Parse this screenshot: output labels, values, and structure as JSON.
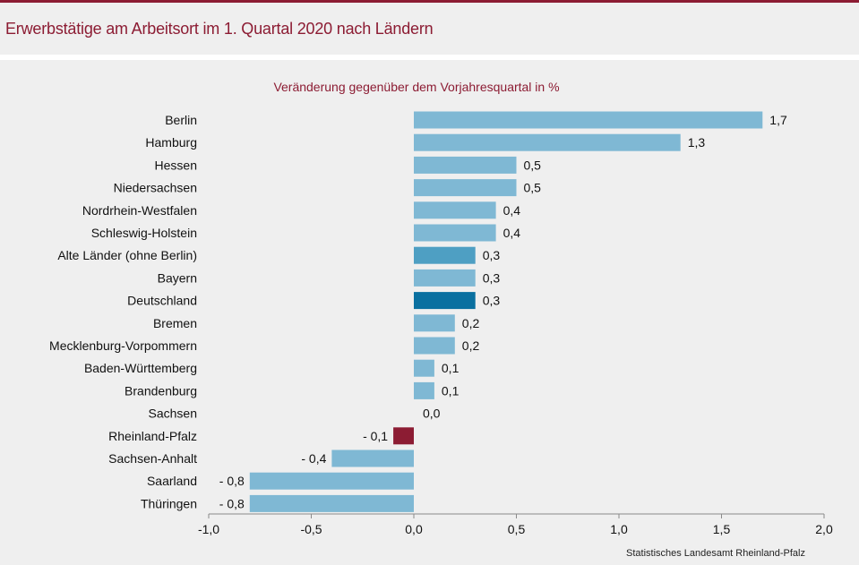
{
  "header": {
    "title": "Erwerbstätige am Arbeitsort im 1. Quartal 2020 nach Ländern"
  },
  "source": "Statistisches Landesamt Rheinland-Pfalz",
  "colors": {
    "brand": "#8c1c33",
    "bar_default": "#7fb8d4",
    "bar_alte_laender": "#4e9fc3",
    "bar_deutschland": "#0a70a0",
    "bar_rheinland_pfalz": "#8c1c33"
  },
  "chart_data": {
    "type": "bar",
    "orientation": "horizontal",
    "title": "Veränderung gegenüber dem Vorjahresquartal in %",
    "xlabel": "",
    "ylabel": "",
    "xlim": [
      -1.0,
      2.0
    ],
    "x_ticks": [
      -1.0,
      -0.5,
      0.0,
      0.5,
      1.0,
      1.5,
      2.0
    ],
    "x_tick_labels": [
      "-1,0",
      "-0,5",
      "0,0",
      "0,5",
      "1,0",
      "1,5",
      "2,0"
    ],
    "grid": false,
    "categories": [
      "Berlin",
      "Hamburg",
      "Hessen",
      "Niedersachsen",
      "Nordrhein-Westfalen",
      "Schleswig-Holstein",
      "Alte Länder (ohne Berlin)",
      "Bayern",
      "Deutschland",
      "Bremen",
      "Mecklenburg-Vorpommern",
      "Baden-Württemberg",
      "Brandenburg",
      "Sachsen",
      "Rheinland-Pfalz",
      "Sachsen-Anhalt",
      "Saarland",
      "Thüringen"
    ],
    "values": [
      1.7,
      1.3,
      0.5,
      0.5,
      0.4,
      0.4,
      0.3,
      0.3,
      0.3,
      0.2,
      0.2,
      0.1,
      0.1,
      0.0,
      -0.1,
      -0.4,
      -0.8,
      -0.8
    ],
    "data_labels": [
      "1,7",
      "1,3",
      "0,5",
      "0,5",
      "0,4",
      "0,4",
      "0,3",
      "0,3",
      "0,3",
      "0,2",
      "0,2",
      "0,1",
      "0,1",
      "0,0",
      "- 0,1",
      "- 0,4",
      "- 0,8",
      "- 0,8"
    ],
    "highlight": {
      "Alte Länder (ohne Berlin)": "bar_alte_laender",
      "Deutschland": "bar_deutschland",
      "Rheinland-Pfalz": "bar_rheinland_pfalz"
    }
  }
}
